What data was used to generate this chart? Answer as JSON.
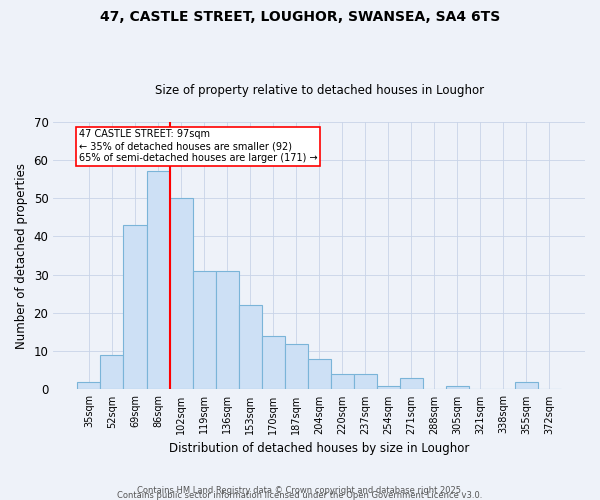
{
  "title1": "47, CASTLE STREET, LOUGHOR, SWANSEA, SA4 6TS",
  "title2": "Size of property relative to detached houses in Loughor",
  "xlabel": "Distribution of detached houses by size in Loughor",
  "ylabel": "Number of detached properties",
  "bins": [
    "35sqm",
    "52sqm",
    "69sqm",
    "86sqm",
    "102sqm",
    "119sqm",
    "136sqm",
    "153sqm",
    "170sqm",
    "187sqm",
    "204sqm",
    "220sqm",
    "237sqm",
    "254sqm",
    "271sqm",
    "288sqm",
    "305sqm",
    "321sqm",
    "338sqm",
    "355sqm",
    "372sqm"
  ],
  "values": [
    2,
    9,
    43,
    57,
    50,
    31,
    31,
    22,
    14,
    12,
    8,
    4,
    4,
    1,
    3,
    0,
    1,
    0,
    0,
    2,
    0
  ],
  "bar_color": "#cde0f5",
  "bar_edge_color": "#7ab4d8",
  "red_line_index": 4,
  "annotation_text": "47 CASTLE STREET: 97sqm\n← 35% of detached houses are smaller (92)\n65% of semi-detached houses are larger (171) →",
  "footer1": "Contains HM Land Registry data © Crown copyright and database right 2025.",
  "footer2": "Contains public sector information licensed under the Open Government Licence v3.0.",
  "ylim": [
    0,
    70
  ],
  "yticks": [
    0,
    10,
    20,
    30,
    40,
    50,
    60,
    70
  ],
  "bg_color": "#eef2f9"
}
